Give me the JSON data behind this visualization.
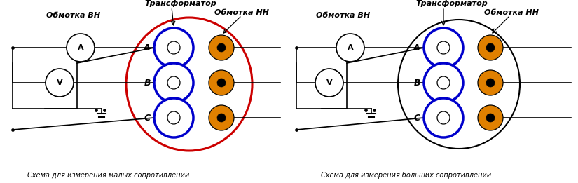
{
  "fig_width": 8.25,
  "fig_height": 2.61,
  "dpi": 100,
  "bg_color": "#ffffff",
  "left": {
    "label_vn": "Обмотка ВН",
    "label_nn": "Обмотка НН",
    "label_trans": "Трансформатор",
    "caption": "Схема для измерения малых сопротивлений",
    "ellipse_color": "#cc0000",
    "ellipse_lw": 2.2
  },
  "right": {
    "label_vn": "Обмотка ВН",
    "label_nn": "Обмотка НН",
    "label_trans": "Трансформатор",
    "caption": "Схема для измерения больших сопротивлений",
    "ellipse_color": "#000000",
    "ellipse_lw": 1.5
  },
  "blue_color": "#0000cc",
  "orange_color": "#e08000"
}
